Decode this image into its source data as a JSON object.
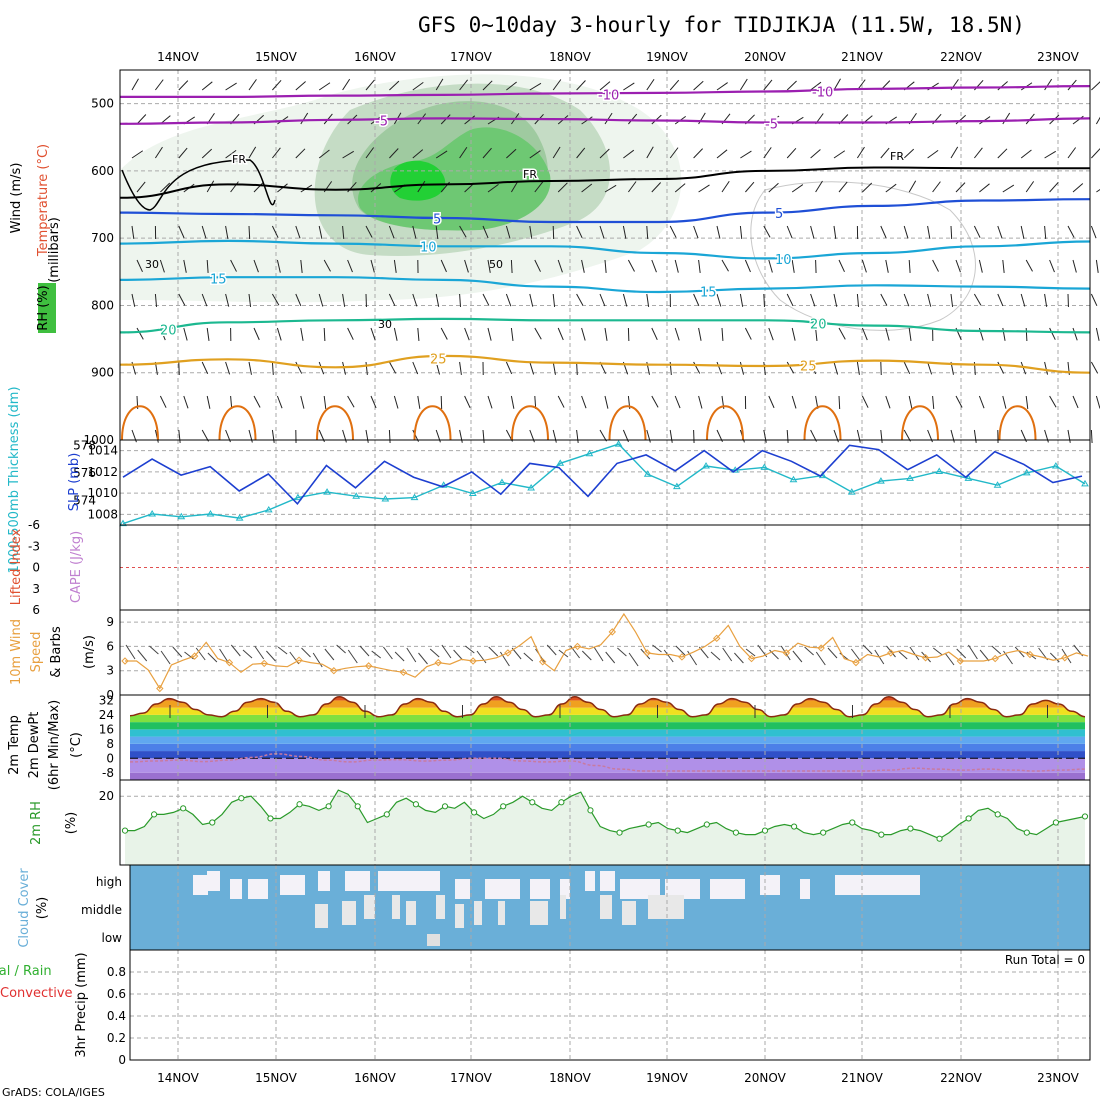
{
  "title": "GFS 0~10day 3-hourly for TIDJIKJA (11.5W, 18.5N)",
  "footer": "GrADS: COLA/IGES",
  "colors": {
    "purple": "#9b1fb0",
    "blue": "#1f4fd6",
    "cyan": "#1aa6d6",
    "teal": "#1cb890",
    "orange": "#e0a020",
    "darkorange": "#e07010",
    "green": "#2ab02a",
    "rhgreen": "#e8f3e8",
    "cloud": "#6aafd8",
    "thick": "#22b8c8",
    "slp": "#1d3fd0",
    "wind10": "#e8a040",
    "rh2m": "#2a9a2a"
  },
  "days": [
    "14NOV",
    "15NOV",
    "16NOV",
    "17NOV",
    "18NOV",
    "19NOV",
    "20NOV",
    "21NOV",
    "22NOV",
    "23NOV"
  ],
  "chart_data": [
    {
      "type": "contour",
      "panel": "upper-air",
      "ylabel_parts": [
        "Wind (m/s)",
        "Temperature (°C)",
        "RH (%)"
      ],
      "axis_label": "(millibars)",
      "yticks": [
        "500",
        "600",
        "700",
        "800",
        "900",
        "1000"
      ],
      "ylim": [
        450,
        1000
      ],
      "freezing_label": "FR",
      "isotherms": [
        {
          "value": -10,
          "label": "-10",
          "color": "#9b1fb0",
          "pressures": [
            490,
            490,
            488,
            487,
            485,
            484,
            482,
            478,
            476,
            474
          ]
        },
        {
          "value": -5,
          "label": "-5",
          "color": "#9b1fb0",
          "pressures": [
            530,
            528,
            524,
            522,
            523,
            525,
            528,
            528,
            526,
            522
          ]
        },
        {
          "value": 5,
          "label": "5",
          "color": "#1f4fd6",
          "pressures": [
            662,
            664,
            666,
            670,
            676,
            676,
            662,
            652,
            644,
            642
          ]
        },
        {
          "value": 10,
          "label": "10",
          "color": "#1aa6d6",
          "pressures": [
            708,
            704,
            708,
            712,
            712,
            722,
            730,
            722,
            712,
            705
          ]
        },
        {
          "value": 15,
          "label": "15",
          "color": "#1aa6d6",
          "pressures": [
            762,
            758,
            758,
            762,
            772,
            780,
            775,
            770,
            772,
            775
          ]
        },
        {
          "value": 20,
          "label": "20",
          "color": "#1cb890",
          "pressures": [
            840,
            825,
            822,
            820,
            822,
            822,
            822,
            830,
            838,
            840
          ]
        },
        {
          "value": 25,
          "label": "25",
          "color": "#e0a020",
          "pressures": [
            888,
            880,
            892,
            875,
            885,
            888,
            890,
            882,
            888,
            900
          ]
        }
      ],
      "freezing_level": [
        640,
        620,
        628,
        620,
        615,
        612,
        600,
        595,
        596,
        596
      ],
      "rh_labels": [
        "30",
        "30",
        "50"
      ]
    },
    {
      "type": "line",
      "panel": "thickness-slp",
      "ylabel_left": "1000-500mb Thickness (dm)",
      "ylabel_right": "SLP (mb)",
      "yticks_left": [
        "574",
        "576",
        "578"
      ],
      "yticks_right": [
        "1008",
        "1010",
        "1012",
        "1014"
      ],
      "ylim_thickness": [
        572.2,
        578.4
      ],
      "ylim_slp": [
        1007,
        1015
      ],
      "series": [
        {
          "name": "1000-500mb Thickness",
          "color": "#22b8c8",
          "values": [
            572.3,
            573.0,
            572.8,
            573.0,
            572.7,
            573.3,
            574.2,
            574.6,
            574.3,
            574.1,
            574.2,
            575.1,
            574.5,
            575.3,
            574.9,
            576.7,
            577.4,
            578.1,
            575.9,
            575.0,
            576.5,
            576.2,
            576.4,
            575.5,
            575.8,
            574.6,
            575.4,
            575.6,
            576.1,
            575.6,
            575.1,
            576.0,
            576.5,
            575.2
          ]
        },
        {
          "name": "SLP",
          "color": "#1d3fd0",
          "values": [
            1011.5,
            1013.2,
            1011.7,
            1012.5,
            1010.2,
            1011.8,
            1009.0,
            1012.6,
            1010.5,
            1013.0,
            1011.5,
            1010.6,
            1012.0,
            1009.9,
            1012.8,
            1012.4,
            1009.7,
            1012.8,
            1013.6,
            1012.1,
            1014.0,
            1012.0,
            1014.0,
            1013.0,
            1011.6,
            1014.5,
            1014.1,
            1012.2,
            1013.6,
            1011.5,
            1013.9,
            1012.7,
            1011.0,
            1011.6
          ]
        }
      ]
    },
    {
      "type": "line",
      "panel": "instability",
      "ylabel_left": "Lifted Index",
      "ylabel_right": "CAPE (J/kg)",
      "yticks": [
        "-6",
        "-3",
        "0",
        "3",
        "6"
      ],
      "ylim": [
        -6,
        6
      ],
      "reference_line": 0
    },
    {
      "type": "line",
      "panel": "10m-wind",
      "ylabel_left": "10m Wind Speed & Barbs",
      "axis_label": "(m/s)",
      "yticks": [
        "0",
        "3",
        "6",
        "9"
      ],
      "ylim": [
        0,
        10.5
      ],
      "series": [
        {
          "name": "10m Wind Speed",
          "color": "#e8a040",
          "values": [
            4.2,
            4.2,
            3.1,
            0.8,
            3.7,
            4.3,
            4.8,
            6.5,
            4.5,
            4.0,
            2.8,
            3.8,
            3.9,
            3.6,
            3.5,
            4.3,
            4.0,
            3.8,
            3.0,
            3.3,
            3.5,
            3.6,
            3.3,
            3.0,
            2.8,
            2.2,
            3.5,
            4.0,
            3.8,
            4.4,
            4.2,
            4.3,
            4.6,
            5.2,
            6.1,
            7.2,
            4.1,
            3.0,
            5.5,
            6.0,
            5.7,
            6.2,
            7.8,
            10.0,
            7.8,
            5.2,
            5.0,
            5.0,
            4.7,
            5.3,
            6.0,
            7.0,
            8.6,
            6.0,
            4.5,
            4.8,
            5.5,
            5.2,
            6.4,
            5.9,
            5.8,
            7.1,
            4.5,
            4.0,
            5.0,
            4.7,
            5.2,
            5.5,
            5.0,
            4.6,
            4.7,
            5.3,
            4.2,
            4.2,
            4.2,
            4.5,
            5.2,
            5.5,
            5.0,
            4.7,
            4.3,
            4.6,
            5.2,
            4.8
          ]
        }
      ]
    },
    {
      "type": "area",
      "panel": "2m-temp",
      "ylabel_left": "2m Temp 2m DewPt (6hr Min/Max)",
      "axis_label": "(°C)",
      "yticks": [
        "-8",
        "0",
        "8",
        "16",
        "24",
        "32"
      ],
      "ylim": [
        -12,
        35
      ],
      "series": [
        {
          "name": "2m Temp",
          "color": "#8a2a10",
          "values": [
            23.5,
            25,
            30,
            33,
            31,
            27,
            24,
            23,
            26,
            31,
            33,
            31,
            26,
            23,
            24,
            30,
            34,
            31,
            26,
            23,
            24,
            30,
            33,
            31,
            26,
            23,
            24,
            30,
            34,
            31,
            27,
            23,
            24,
            30,
            34,
            31,
            27,
            23,
            24,
            30,
            33,
            31,
            27,
            23,
            24,
            30,
            33,
            31,
            27,
            23,
            24,
            30,
            33,
            31,
            27,
            23,
            24,
            30,
            34,
            31,
            27,
            23,
            24,
            30,
            33,
            31,
            27,
            23,
            24,
            30,
            32,
            30,
            26,
            23
          ]
        },
        {
          "name": "2m DewPt",
          "color": "#c87aa0",
          "values": [
            -2,
            -1.5,
            -1,
            -1.8,
            -1,
            0.5,
            2.5,
            1,
            -1,
            -2,
            -1,
            -0.8,
            -1.5,
            -1,
            0,
            0,
            -1.5,
            -2,
            -1.5,
            -4,
            -6,
            -7,
            -7,
            -7,
            -7,
            -7,
            -7,
            -7,
            -7,
            -7,
            -7,
            -6.5,
            -5.5,
            -6,
            -6.5,
            -6,
            -6.5,
            -7,
            -6.5,
            -6
          ]
        }
      ]
    },
    {
      "type": "line",
      "panel": "2m-rh",
      "ylabel_left": "2m RH",
      "axis_label": "(%)",
      "yticks": [
        "20"
      ],
      "ylim": [
        3,
        24
      ],
      "series": [
        {
          "name": "2m RH",
          "color": "#2a9a2a",
          "values": [
            11.5,
            11.5,
            12.5,
            15.5,
            15.5,
            16,
            17,
            15.5,
            13,
            13.5,
            15.5,
            18.5,
            19.5,
            20,
            17.5,
            14.5,
            14.5,
            16,
            18,
            17.5,
            16.5,
            17.5,
            21.5,
            20.5,
            17.5,
            13.5,
            14.5,
            15.5,
            18.5,
            19.5,
            18,
            16.5,
            16,
            17.5,
            17,
            18.5,
            16,
            14.5,
            15.5,
            17.5,
            18.5,
            20,
            18.5,
            17,
            16.5,
            18.5,
            20,
            21,
            16.5,
            12.5,
            11.5,
            11,
            12,
            12.5,
            13,
            13.5,
            12,
            11.5,
            11,
            12,
            13,
            13.5,
            12,
            11,
            10.5,
            10.5,
            11.5,
            12.5,
            13,
            12.5,
            11,
            10.5,
            11,
            12,
            13,
            13.5,
            12,
            11.5,
            10.5,
            10.5,
            11.5,
            12,
            11.5,
            10.5,
            9.5,
            11,
            13,
            14.5,
            16.5,
            17,
            15.5,
            14.5,
            12,
            11,
            10.5,
            12,
            13.5,
            14,
            14.5,
            15
          ]
        }
      ]
    },
    {
      "type": "bar",
      "panel": "cloud-cover",
      "ylabel_left": "Cloud Cover",
      "axis_label": "(%)",
      "levels": [
        "high",
        "middle",
        "low"
      ]
    },
    {
      "type": "bar",
      "panel": "precip",
      "ylabel_left": "3hr Precip (mm)",
      "legend_left": [
        "Total / Rain",
        "Convective"
      ],
      "yticks": [
        "0",
        "0.2",
        "0.4",
        "0.6",
        "0.8"
      ],
      "ylim": [
        0,
        1
      ],
      "run_total_label": "Run Total = 0",
      "values": []
    }
  ]
}
